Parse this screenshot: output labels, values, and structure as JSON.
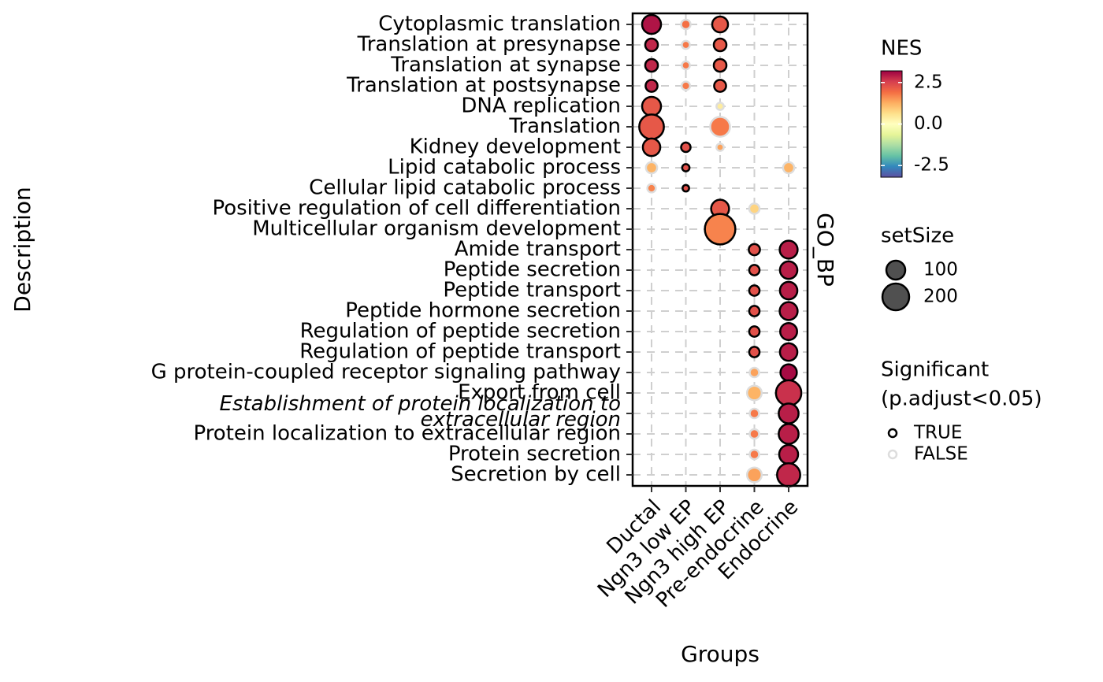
{
  "chart_data": {
    "type": "dot",
    "x_label": "Groups",
    "y_label": "Description",
    "facet": "GO_BP",
    "categories": [
      "Cytoplasmic translation",
      "Translation at presynapse",
      "Translation at synapse",
      "Translation at postsynapse",
      "DNA replication",
      "Translation",
      "Kidney development",
      "Lipid catabolic process",
      "Cellular lipid catabolic process",
      "Positive regulation of cell differentiation",
      "Multicellular organism development",
      "Amide transport",
      "Peptide secretion",
      "Peptide transport",
      "Peptide hormone secretion",
      "Regulation of peptide secretion",
      "Regulation of peptide transport",
      "G protein-coupled receptor signaling pathway",
      "Export from cell",
      [
        "Establishment of protein localization to",
        "extracellular region"
      ],
      "Protein localization to extracellular region",
      "Protein secretion",
      "Secretion by cell"
    ],
    "series": [
      {
        "name": "Ductal",
        "nes": [
          3.0,
          2.8,
          2.8,
          2.8,
          2.2,
          2.2,
          2.2,
          1.2,
          1.7,
          null,
          null,
          null,
          null,
          null,
          null,
          null,
          null,
          null,
          null,
          null,
          null,
          null,
          null
        ],
        "set_size": [
          100,
          45,
          45,
          40,
          100,
          170,
          85,
          35,
          20,
          null,
          null,
          null,
          null,
          null,
          null,
          null,
          null,
          null,
          null,
          null,
          null,
          null,
          null
        ],
        "significant": [
          true,
          true,
          true,
          true,
          true,
          true,
          true,
          false,
          false,
          null,
          null,
          null,
          null,
          null,
          null,
          null,
          null,
          null,
          null,
          null,
          null,
          null,
          null
        ]
      },
      {
        "name": "Ngn3 low EP",
        "nes": [
          1.9,
          1.8,
          1.8,
          1.8,
          null,
          null,
          2.3,
          2.3,
          2.3,
          null,
          null,
          null,
          null,
          null,
          null,
          null,
          null,
          null,
          null,
          null,
          null,
          null,
          null
        ],
        "set_size": [
          25,
          18,
          18,
          20,
          null,
          null,
          25,
          15,
          12,
          null,
          null,
          null,
          null,
          null,
          null,
          null,
          null,
          null,
          null,
          null,
          null,
          null,
          null
        ],
        "significant": [
          false,
          false,
          false,
          false,
          null,
          null,
          true,
          true,
          true,
          null,
          null,
          null,
          null,
          null,
          null,
          null,
          null,
          null,
          null,
          null,
          null,
          null,
          null
        ]
      },
      {
        "name": "Ngn3 high EP",
        "nes": [
          2.2,
          2.2,
          2.2,
          2.2,
          0.4,
          1.8,
          1.4,
          null,
          null,
          2.2,
          1.7,
          null,
          null,
          null,
          null,
          null,
          null,
          null,
          null,
          null,
          null,
          null,
          null
        ],
        "set_size": [
          70,
          45,
          45,
          40,
          15,
          110,
          15,
          null,
          null,
          90,
          260,
          null,
          null,
          null,
          null,
          null,
          null,
          null,
          null,
          null,
          null,
          null,
          null
        ],
        "significant": [
          true,
          true,
          true,
          true,
          false,
          false,
          false,
          null,
          null,
          true,
          true,
          null,
          null,
          null,
          null,
          null,
          null,
          null,
          null,
          null,
          null,
          null,
          null
        ]
      },
      {
        "name": "Pre-endocrine",
        "nes": [
          null,
          null,
          null,
          null,
          null,
          null,
          null,
          null,
          null,
          0.8,
          null,
          2.3,
          2.3,
          2.3,
          2.3,
          2.3,
          2.3,
          1.4,
          1.2,
          1.8,
          1.8,
          1.8,
          1.4
        ],
        "set_size": [
          null,
          null,
          null,
          null,
          null,
          null,
          null,
          null,
          null,
          30,
          null,
          35,
          30,
          30,
          30,
          30,
          30,
          25,
          60,
          25,
          25,
          25,
          60
        ],
        "significant": [
          null,
          null,
          null,
          null,
          null,
          null,
          null,
          null,
          null,
          false,
          null,
          true,
          true,
          true,
          true,
          true,
          true,
          false,
          false,
          false,
          false,
          false,
          false
        ]
      },
      {
        "name": "Endocrine",
        "nes": [
          null,
          null,
          null,
          null,
          null,
          null,
          null,
          1.2,
          null,
          null,
          null,
          2.9,
          2.9,
          2.9,
          2.9,
          2.9,
          2.9,
          3.1,
          2.7,
          2.9,
          2.9,
          2.9,
          2.8
        ],
        "set_size": [
          null,
          null,
          null,
          null,
          null,
          null,
          null,
          35,
          null,
          null,
          null,
          90,
          85,
          85,
          90,
          80,
          85,
          75,
          180,
          110,
          110,
          100,
          150
        ],
        "significant": [
          null,
          null,
          null,
          null,
          null,
          null,
          null,
          false,
          null,
          null,
          null,
          true,
          true,
          true,
          true,
          true,
          true,
          true,
          true,
          true,
          true,
          true,
          true
        ]
      }
    ],
    "color_title": "NES",
    "color_lim": [
      -3.2,
      3.2
    ],
    "color_ticks": [
      2.5,
      {
        "value": 0,
        "label": "0.0"
      },
      -2.5
    ],
    "palette": [
      "#5E4FA2",
      "#3288BD",
      "#66C2A5",
      "#ABDDA4",
      "#E6F598",
      "#FFFFBF",
      "#FEE08B",
      "#FDAE61",
      "#F46D43",
      "#D53E4F",
      "#9E0142"
    ],
    "size_title": "setSize",
    "size_ticks": [
      100,
      200
    ],
    "significant_title": [
      "Significant",
      "(p.adjust<0.05)"
    ],
    "significant_labels": [
      "TRUE",
      "FALSE"
    ],
    "significant_stroke": [
      "#000000",
      "#dddddd"
    ]
  }
}
